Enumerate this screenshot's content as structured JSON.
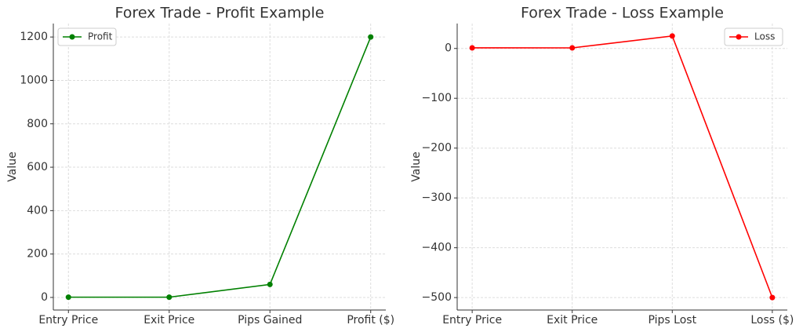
{
  "chart_data": [
    {
      "type": "line",
      "title": "Forex Trade - Profit Example",
      "y_label": "Value",
      "categories": [
        "Entry Price",
        "Exit Price",
        "Pips Gained",
        "Profit ($)"
      ],
      "series": [
        {
          "name": "Profit",
          "color": "#008000",
          "values": [
            1.2,
            1.21,
            60,
            1200
          ]
        }
      ],
      "ylim": [
        -58,
        1262
      ],
      "yticks": [
        0,
        200,
        400,
        600,
        800,
        1000,
        1200
      ],
      "grid": true,
      "legend": "upper left"
    },
    {
      "type": "line",
      "title": "Forex Trade - Loss Example",
      "y_label": "Value",
      "categories": [
        "Entry Price",
        "Exit Price",
        "Pips Lost",
        "Loss ($)"
      ],
      "series": [
        {
          "name": "Loss",
          "color": "#ff0000",
          "values": [
            1.2,
            1.18,
            25,
            -500
          ]
        }
      ],
      "ylim": [
        -525,
        50
      ],
      "yticks": [
        0,
        {
          "value": -100,
          "label": "−100"
        },
        {
          "value": -200,
          "label": "−200"
        },
        {
          "value": -300,
          "label": "−300"
        },
        {
          "value": -400,
          "label": "−400"
        },
        {
          "value": -500,
          "label": "−500"
        }
      ],
      "grid": true,
      "legend": "upper right"
    }
  ]
}
